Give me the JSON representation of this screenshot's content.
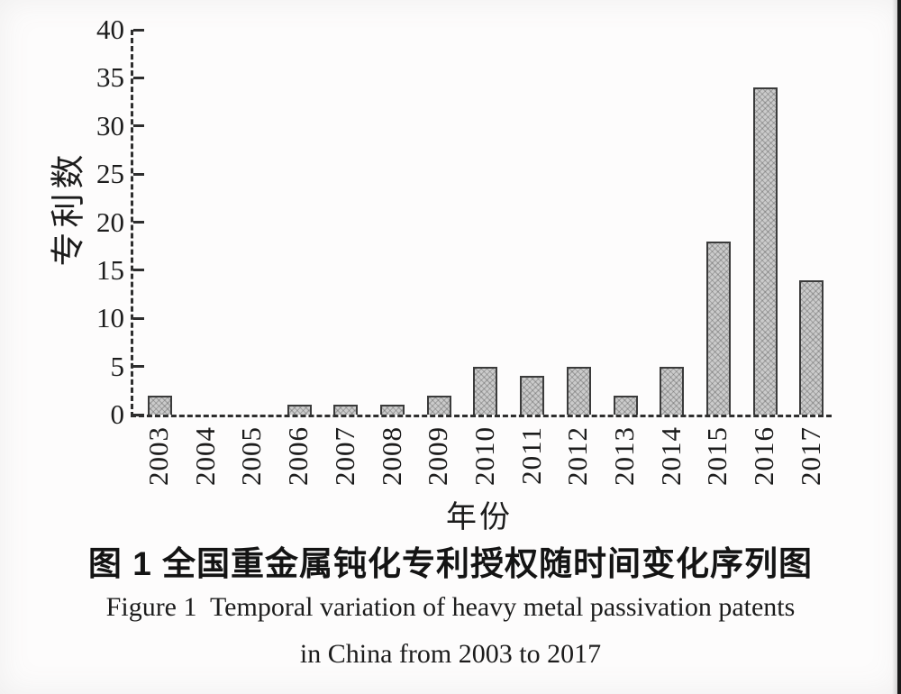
{
  "figure": {
    "caption_cn": "图 1  全国重金属钝化专利授权随时间变化序列图",
    "caption_en_line1": "Figure 1  Temporal variation of heavy metal passivation patents",
    "caption_en_line2": "in China from 2003 to 2017"
  },
  "chart_data": {
    "type": "bar",
    "title_cn": "图 1 全国重金属钝化专利授权随时间变化序列图",
    "title_en": "Figure 1 Temporal variation of heavy metal passivation patents in China from 2003 to 2017",
    "categories": [
      "2003",
      "2004",
      "2005",
      "2006",
      "2007",
      "2008",
      "2009",
      "2010",
      "2011",
      "2012",
      "2013",
      "2014",
      "2015",
      "2016",
      "2017"
    ],
    "values": [
      2,
      0,
      0,
      1,
      1,
      1,
      2,
      5,
      4,
      5,
      2,
      5,
      18,
      34,
      14
    ],
    "xlabel": "年份",
    "ylabel": "专利数",
    "ylim": [
      0,
      40
    ],
    "yticks": [
      0,
      5,
      10,
      15,
      20,
      25,
      30,
      35,
      40
    ],
    "grid": false,
    "legend_position": "none",
    "bar_fill": "#cbcbcb",
    "bar_border": "#3b3b3b",
    "axis_color": "#2e2e2e",
    "text_color": "#1c1c1c"
  }
}
